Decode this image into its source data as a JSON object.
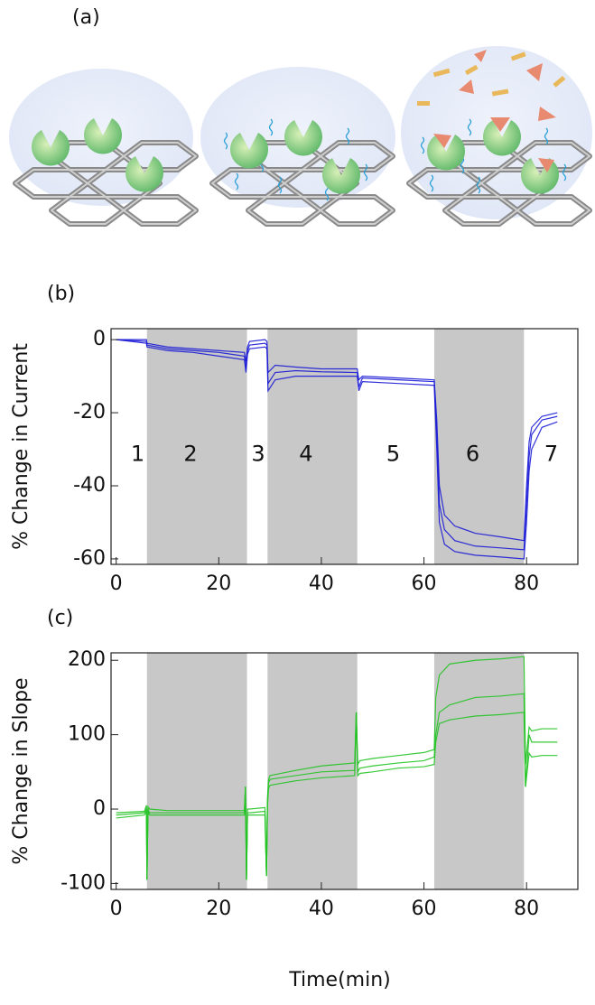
{
  "illustration": {
    "panel_label": "(a)"
  },
  "chart_data": [
    {
      "type": "line",
      "panel_label": "(b)",
      "ylabel": "% Change in Current",
      "xlim": [
        -1,
        90
      ],
      "ylim": [
        -61.5,
        3
      ],
      "xticks": [
        0,
        20,
        40,
        60,
        80
      ],
      "yticks": [
        0,
        -20,
        -40,
        -60
      ],
      "shaded_regions": [
        [
          6,
          25.5
        ],
        [
          29.5,
          47
        ],
        [
          62,
          79.5
        ]
      ],
      "shade_color": "#c8c8c8",
      "annotations": [
        {
          "text": "1",
          "x": 4.2,
          "y": -31.5
        },
        {
          "text": "2",
          "x": 14.5,
          "y": -31.5
        },
        {
          "text": "3",
          "x": 27.7,
          "y": -31.5
        },
        {
          "text": "4",
          "x": 37,
          "y": -31.5
        },
        {
          "text": "5",
          "x": 54,
          "y": -31.5
        },
        {
          "text": "6",
          "x": 69.5,
          "y": -31.5
        },
        {
          "text": "7",
          "x": 84.8,
          "y": -31.5
        }
      ],
      "x": [
        0,
        5.9,
        6,
        10,
        15,
        20,
        25,
        25.3,
        25.6,
        26,
        29,
        29.4,
        29.6,
        31,
        35,
        40,
        47,
        47.3,
        48,
        55,
        62,
        62.5,
        63,
        64,
        66,
        70,
        75,
        79.5,
        80,
        80.5,
        81,
        83,
        86
      ],
      "series": [
        {
          "color": "#1a1ad6",
          "values": [
            0,
            0,
            -1,
            -2,
            -2.5,
            -3,
            -3.5,
            -6,
            -2,
            -0.5,
            0,
            -0.5,
            -9,
            -7,
            -7.5,
            -8,
            -8,
            -11,
            -10,
            -10.5,
            -11,
            -22,
            -40,
            -48,
            -51,
            -53,
            -54,
            -55,
            -40,
            -28,
            -24,
            -21,
            -20
          ]
        },
        {
          "color": "#1a1ad6",
          "values": [
            0,
            -0.5,
            -1.5,
            -2.5,
            -3,
            -3.5,
            -4.5,
            -8,
            -3,
            -1.5,
            -1,
            -1.5,
            -12,
            -9,
            -8.5,
            -8.8,
            -9,
            -13,
            -10.5,
            -11,
            -11.5,
            -25,
            -45,
            -52,
            -55,
            -56.5,
            -57,
            -57.5,
            -45,
            -32,
            -26,
            -22,
            -21
          ]
        },
        {
          "color": "#1a1ad6",
          "values": [
            0,
            -1,
            -2,
            -3,
            -3.5,
            -4.5,
            -5.5,
            -9,
            -4,
            -2.5,
            -2,
            -2.5,
            -14,
            -11,
            -10,
            -10,
            -10,
            -14,
            -11.5,
            -12,
            -12.5,
            -30,
            -50,
            -56,
            -58,
            -59,
            -59.5,
            -60,
            -50,
            -36,
            -30,
            -24,
            -22.5
          ]
        }
      ]
    },
    {
      "type": "line",
      "panel_label": "(c)",
      "ylabel": "% Change in Slope",
      "xlabel": "Time(min)",
      "xlim": [
        -1,
        90
      ],
      "ylim": [
        -108,
        210
      ],
      "xticks": [
        0,
        20,
        40,
        60,
        80
      ],
      "yticks": [
        200,
        100,
        0,
        -100
      ],
      "shaded_regions": [
        [
          6,
          25.5
        ],
        [
          29.5,
          47
        ],
        [
          62,
          79.5
        ]
      ],
      "shade_color": "#c8c8c8",
      "x": [
        0,
        5.5,
        5.9,
        6,
        6.2,
        6.5,
        10,
        15,
        20,
        25,
        25.2,
        25.4,
        25.6,
        26,
        29,
        29.3,
        29.5,
        29.7,
        30,
        35,
        40,
        46.5,
        46.8,
        47.1,
        47.5,
        50,
        55,
        60,
        62,
        62.3,
        63,
        65,
        70,
        75,
        79.5,
        79.8,
        80.5,
        81,
        83,
        86
      ],
      "series": [
        {
          "color": "#22c322",
          "values": [
            -5,
            -3,
            5,
            -95,
            3,
            0,
            -2,
            -2,
            -2,
            -2,
            30,
            -95,
            0,
            0,
            2,
            -90,
            15,
            40,
            45,
            52,
            58,
            62,
            130,
            60,
            65,
            68,
            72,
            76,
            80,
            150,
            180,
            195,
            200,
            202,
            205,
            60,
            110,
            105,
            108,
            108
          ]
        },
        {
          "color": "#22c322",
          "values": [
            -8,
            -5,
            0,
            -95,
            0,
            -5,
            -5,
            -5,
            -5,
            -5,
            30,
            -95,
            -5,
            -5,
            -3,
            -90,
            10,
            35,
            40,
            45,
            50,
            52,
            130,
            50,
            55,
            58,
            62,
            65,
            70,
            100,
            130,
            140,
            150,
            152,
            155,
            30,
            100,
            90,
            90,
            90
          ]
        },
        {
          "color": "#22c322",
          "values": [
            -12,
            -8,
            -3,
            -95,
            -3,
            -8,
            -8,
            -8,
            -8,
            -8,
            30,
            -95,
            -8,
            -8,
            -8,
            -90,
            5,
            28,
            32,
            38,
            42,
            45,
            130,
            45,
            48,
            50,
            55,
            57,
            60,
            90,
            115,
            120,
            125,
            127,
            130,
            30,
            75,
            70,
            72,
            72
          ]
        }
      ]
    }
  ]
}
